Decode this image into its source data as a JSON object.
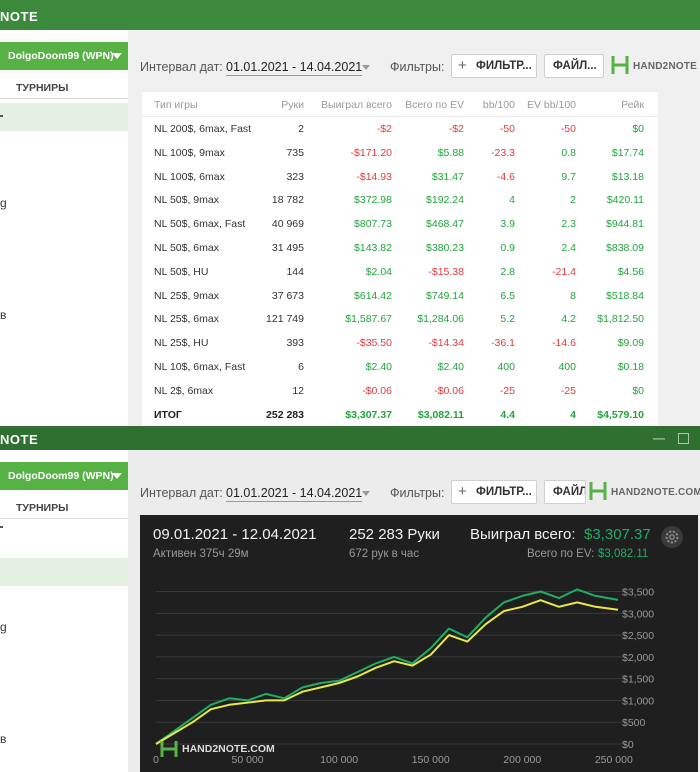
{
  "app_title": "NOTE",
  "colors": {
    "green": "#22a43c",
    "red": "#e23b3b",
    "chart_green_line": "#1fae63",
    "chart_yellow_line": "#e8e84a",
    "accent": "#57b246"
  },
  "sidebar": {
    "player": "DolgoDoom99 (WPN)",
    "tab": "ТУРНИРЫ",
    "frag1": "g",
    "frag2": "в"
  },
  "toolbar": {
    "interval_label": "Интервал дат:",
    "interval_value": "01.01.2021 - 14.04.2021",
    "filters_label": "Фильтры:",
    "filter_button": "ФИЛЬТР...",
    "filter_button_bottom": "ФИЛЬТР...",
    "files_button": "ФАЙЛ...",
    "files_button_bottom": "ФАЙЛ",
    "brand": "HAND2NOTE",
    "brand_bottom": "HAND2NOTE.COM"
  },
  "stats_table": {
    "columns": [
      "Тип игры",
      "Руки",
      "Выиграл всего",
      "Всего по EV",
      "bb/100",
      "EV bb/100",
      "Рейк"
    ],
    "rows": [
      {
        "game": "NL 200$, 6max, Fast",
        "hands": "2",
        "won": "-$2",
        "ev": "-$2",
        "bb": "-50",
        "evbb": "-50",
        "rake": "$0"
      },
      {
        "game": "NL 100$, 9max",
        "hands": "735",
        "won": "-$171.20",
        "ev": "$5.88",
        "bb": "-23.3",
        "evbb": "0.8",
        "rake": "$17.74"
      },
      {
        "game": "NL 100$, 6max",
        "hands": "323",
        "won": "-$14.93",
        "ev": "$31.47",
        "bb": "-4.6",
        "evbb": "9.7",
        "rake": "$13.18"
      },
      {
        "game": "NL 50$, 9max",
        "hands": "18 782",
        "won": "$372.98",
        "ev": "$192.24",
        "bb": "4",
        "evbb": "2",
        "rake": "$420.11"
      },
      {
        "game": "NL 50$, 6max, Fast",
        "hands": "40 969",
        "won": "$807.73",
        "ev": "$468.47",
        "bb": "3.9",
        "evbb": "2.3",
        "rake": "$944.81"
      },
      {
        "game": "NL 50$, 6max",
        "hands": "31 495",
        "won": "$143.82",
        "ev": "$380.23",
        "bb": "0.9",
        "evbb": "2.4",
        "rake": "$838.09"
      },
      {
        "game": "NL 50$, HU",
        "hands": "144",
        "won": "$2.04",
        "ev": "-$15.38",
        "bb": "2.8",
        "evbb": "-21.4",
        "rake": "$4.56"
      },
      {
        "game": "NL 25$, 9max",
        "hands": "37 673",
        "won": "$614.42",
        "ev": "$749.14",
        "bb": "6.5",
        "evbb": "8",
        "rake": "$518.84"
      },
      {
        "game": "NL 25$, 6max",
        "hands": "121 749",
        "won": "$1,587.67",
        "ev": "$1,284.06",
        "bb": "5.2",
        "evbb": "4.2",
        "rake": "$1,812.50"
      },
      {
        "game": "NL 25$, HU",
        "hands": "393",
        "won": "-$35.50",
        "ev": "-$14.34",
        "bb": "-36.1",
        "evbb": "-14.6",
        "rake": "$9.09"
      },
      {
        "game": "NL 10$, 6max, Fast",
        "hands": "6",
        "won": "$2.40",
        "ev": "$2.40",
        "bb": "400",
        "evbb": "400",
        "rake": "$0.18"
      },
      {
        "game": "NL 2$, 6max",
        "hands": "12",
        "won": "-$0.06",
        "ev": "-$0.06",
        "bb": "-25",
        "evbb": "-25",
        "rake": "$0"
      }
    ],
    "total": {
      "game": "ИТОГ",
      "hands": "252 283",
      "won": "$3,307.37",
      "ev": "$3,082.11",
      "bb": "4.4",
      "evbb": "4",
      "rake": "$4,579.10"
    }
  },
  "graph_header": {
    "date_range": "09.01.2021 - 12.04.2021",
    "active": "Активен 375ч 29м",
    "hands": "252 283 Руки",
    "hands_per_hour": "672 рук в час",
    "won_label": "Выиграл всего:",
    "won_value": "$3,307.37",
    "ev_label": "Всего по EV:",
    "ev_value": "$3,082.11",
    "watermark": "HAND2NOTE.COM"
  },
  "chart_data": {
    "type": "line",
    "title": "",
    "xlabel": "",
    "ylabel": "",
    "xlim": [
      0,
      252283
    ],
    "ylim": [
      0,
      3650
    ],
    "x_ticks": [
      "0",
      "50 000",
      "100 000",
      "150 000",
      "200 000",
      "250 000"
    ],
    "x_tick_values": [
      0,
      50000,
      100000,
      150000,
      200000,
      250000
    ],
    "y_ticks": [
      "$0",
      "$500",
      "$1,000",
      "$1,500",
      "$2,000",
      "$2,500",
      "$3,000",
      "$3,500"
    ],
    "y_tick_values": [
      0,
      500,
      1000,
      1500,
      2000,
      2500,
      3000,
      3500
    ],
    "series": [
      {
        "name": "Выиграл всего",
        "color": "#1fae63",
        "x": [
          0,
          10000,
          20000,
          30000,
          40000,
          50000,
          60000,
          70000,
          80000,
          90000,
          100000,
          110000,
          120000,
          130000,
          140000,
          150000,
          160000,
          170000,
          180000,
          190000,
          200000,
          210000,
          220000,
          230000,
          240000,
          252283
        ],
        "y": [
          0,
          300,
          600,
          900,
          1050,
          1000,
          1150,
          1050,
          1300,
          1400,
          1450,
          1650,
          1850,
          2000,
          1850,
          2200,
          2650,
          2450,
          2900,
          3250,
          3400,
          3500,
          3350,
          3550,
          3400,
          3307
        ]
      },
      {
        "name": "Всего по EV",
        "color": "#e8e84a",
        "x": [
          0,
          10000,
          20000,
          30000,
          40000,
          50000,
          60000,
          70000,
          80000,
          90000,
          100000,
          110000,
          120000,
          130000,
          140000,
          150000,
          160000,
          170000,
          180000,
          190000,
          200000,
          210000,
          220000,
          230000,
          240000,
          252283
        ],
        "y": [
          0,
          250,
          500,
          800,
          900,
          950,
          1000,
          1000,
          1200,
          1300,
          1400,
          1550,
          1750,
          1900,
          1800,
          2050,
          2500,
          2350,
          2750,
          3050,
          3150,
          3300,
          3150,
          3250,
          3150,
          3082
        ]
      }
    ]
  }
}
